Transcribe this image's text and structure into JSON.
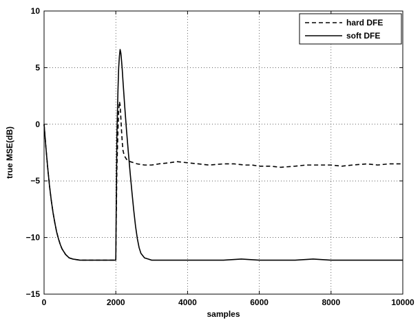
{
  "chart_data": {
    "type": "line",
    "xlabel": "samples",
    "ylabel": "true MSE(dB)",
    "xlim": [
      0,
      10000
    ],
    "ylim": [
      -15,
      10
    ],
    "xticks": [
      0,
      2000,
      4000,
      6000,
      8000,
      10000
    ],
    "yticks": [
      -15,
      -10,
      -5,
      0,
      5,
      10
    ],
    "xtick_labels": [
      "0",
      "2000",
      "4000",
      "6000",
      "8000",
      "10000"
    ],
    "ytick_labels": [
      "−15",
      "−10",
      "−5",
      "0",
      "5",
      "10"
    ],
    "grid": true,
    "legend_position": "top-right",
    "series": [
      {
        "name": "hard DFE",
        "style": "dashed",
        "color": "#000000",
        "x": [
          0,
          50,
          100,
          150,
          200,
          250,
          300,
          350,
          400,
          450,
          500,
          600,
          700,
          800,
          1000,
          1200,
          1500,
          1800,
          1950,
          2000,
          2010,
          2030,
          2060,
          2080,
          2100,
          2120,
          2140,
          2160,
          2180,
          2200,
          2230,
          2260,
          2300,
          2350,
          2400,
          2500,
          2600,
          2800,
          3000,
          3200,
          3500,
          3700,
          4000,
          4300,
          4600,
          5000,
          5300,
          5600,
          5800,
          6000,
          6300,
          6600,
          7000,
          7300,
          7600,
          8000,
          8300,
          8600,
          9000,
          9300,
          9600,
          10000
        ],
        "y": [
          0,
          -2.0,
          -3.8,
          -5.4,
          -6.7,
          -7.8,
          -8.7,
          -9.5,
          -10.1,
          -10.6,
          -11.0,
          -11.5,
          -11.8,
          -11.9,
          -12.0,
          -12.0,
          -12.0,
          -12.0,
          -12.0,
          -12.0,
          -9.0,
          -4.0,
          -0.5,
          1.2,
          2.0,
          1.7,
          0.6,
          -0.6,
          -1.6,
          -2.3,
          -2.7,
          -2.9,
          -3.1,
          -3.2,
          -3.3,
          -3.4,
          -3.5,
          -3.6,
          -3.6,
          -3.5,
          -3.4,
          -3.3,
          -3.4,
          -3.5,
          -3.6,
          -3.5,
          -3.5,
          -3.6,
          -3.6,
          -3.7,
          -3.7,
          -3.8,
          -3.7,
          -3.6,
          -3.6,
          -3.6,
          -3.7,
          -3.6,
          -3.5,
          -3.6,
          -3.5,
          -3.5
        ]
      },
      {
        "name": "soft DFE",
        "style": "solid",
        "color": "#000000",
        "x": [
          0,
          50,
          100,
          150,
          200,
          250,
          300,
          350,
          400,
          450,
          500,
          600,
          700,
          800,
          1000,
          1200,
          1500,
          1800,
          1950,
          2000,
          2010,
          2030,
          2060,
          2080,
          2100,
          2120,
          2140,
          2160,
          2180,
          2200,
          2250,
          2300,
          2350,
          2400,
          2450,
          2500,
          2550,
          2600,
          2650,
          2700,
          2800,
          2900,
          3000,
          3500,
          4000,
          4500,
          5000,
          5500,
          6000,
          6500,
          7000,
          7500,
          8000,
          8500,
          9000,
          9500,
          10000
        ],
        "y": [
          0,
          -2.0,
          -3.8,
          -5.4,
          -6.7,
          -7.8,
          -8.7,
          -9.5,
          -10.1,
          -10.6,
          -11.0,
          -11.5,
          -11.8,
          -11.9,
          -12.0,
          -12.0,
          -12.0,
          -12.0,
          -12.0,
          -12.0,
          -8.0,
          -1.0,
          3.0,
          5.0,
          6.0,
          6.6,
          6.3,
          5.6,
          4.8,
          3.8,
          1.5,
          -0.6,
          -2.5,
          -4.3,
          -6.0,
          -7.6,
          -9.0,
          -10.1,
          -10.9,
          -11.4,
          -11.8,
          -11.9,
          -12.0,
          -12.0,
          -12.0,
          -12.0,
          -12.0,
          -11.9,
          -12.0,
          -12.0,
          -12.0,
          -11.9,
          -12.0,
          -12.0,
          -12.0,
          -12.0,
          -12.0
        ]
      }
    ]
  }
}
